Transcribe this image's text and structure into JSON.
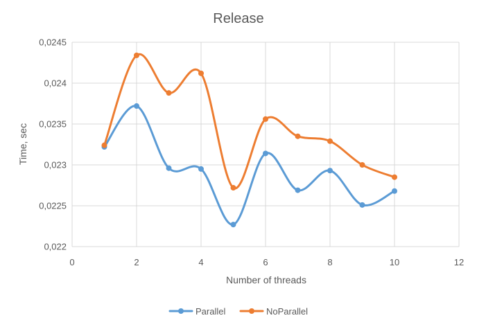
{
  "chart_data": {
    "type": "scatter",
    "title": "Release",
    "xlabel": "Number of threads",
    "ylabel": "Time, sec",
    "xlim": [
      0,
      12
    ],
    "ylim": [
      0.022,
      0.0245
    ],
    "x_ticks": [
      0,
      2,
      4,
      6,
      8,
      10,
      12
    ],
    "x_tick_labels": [
      "0",
      "2",
      "4",
      "6",
      "8",
      "10",
      "12"
    ],
    "y_ticks": [
      0.022,
      0.0225,
      0.023,
      0.0235,
      0.024,
      0.0245
    ],
    "y_tick_labels": [
      "0,022",
      "0,0225",
      "0,023",
      "0,0235",
      "0,024",
      "0,0245"
    ],
    "grid": true,
    "smooth_lines": true,
    "legend_position": "bottom",
    "x": [
      1,
      2,
      3,
      4,
      5,
      6,
      7,
      8,
      9,
      10
    ],
    "series": [
      {
        "name": "Parallel",
        "color": "#5b9bd5",
        "values": [
          0.02322,
          0.02372,
          0.02296,
          0.02295,
          0.02227,
          0.02314,
          0.02269,
          0.02293,
          0.02251,
          0.02268
        ]
      },
      {
        "name": "NoParallel",
        "color": "#ed7d31",
        "values": [
          0.02324,
          0.02434,
          0.02388,
          0.02412,
          0.02272,
          0.02356,
          0.02335,
          0.02329,
          0.023,
          0.02285
        ]
      }
    ]
  }
}
